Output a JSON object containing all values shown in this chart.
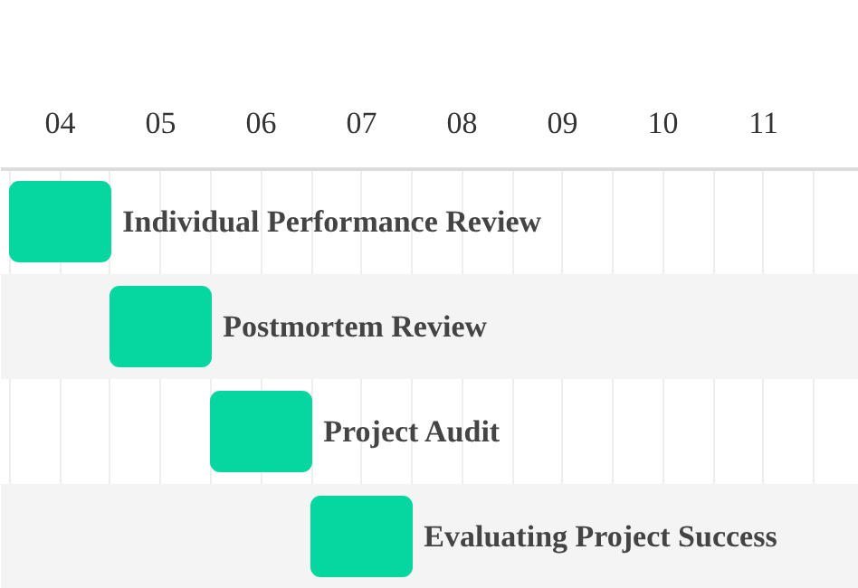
{
  "chart_data": {
    "type": "bar",
    "orientation": "horizontal",
    "categories": [
      "Individual Performance Review",
      "Postmortem Review",
      "Project Audit",
      "Evaluating Project Success"
    ],
    "base": [
      3.5,
      4.5,
      5.5,
      6.5
    ],
    "values": [
      1,
      1,
      1,
      1
    ],
    "color": "#06d6a0",
    "xlim": [
      3.41,
      11.95
    ],
    "xticks": [
      {
        "value": 4,
        "label": "04"
      },
      {
        "value": 5,
        "label": "05"
      },
      {
        "value": 6,
        "label": "06"
      },
      {
        "value": 7,
        "label": "07"
      },
      {
        "value": 8,
        "label": "08"
      },
      {
        "value": 9,
        "label": "09"
      },
      {
        "value": 10,
        "label": "10"
      },
      {
        "value": 11,
        "label": "11"
      },
      {
        "value": 3.5,
        "label": null
      },
      {
        "value": 4.5,
        "label": null
      },
      {
        "value": 5.5,
        "label": null
      },
      {
        "value": 6.5,
        "label": null
      },
      {
        "value": 7.5,
        "label": null
      },
      {
        "value": 8.5,
        "label": null
      },
      {
        "value": 9.5,
        "label": null
      },
      {
        "value": 10.5,
        "label": null
      },
      {
        "value": 11.5,
        "label": null
      }
    ],
    "grid": "x",
    "tick_labels": "x"
  }
}
